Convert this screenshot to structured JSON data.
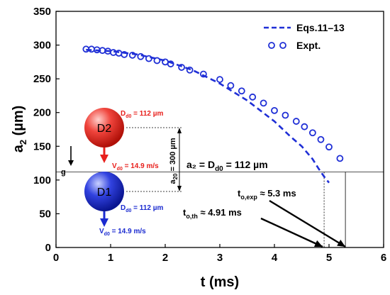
{
  "chart_data": {
    "type": "scatter",
    "xlabel": "t (ms)",
    "ylabel_main": "a",
    "ylabel_sub": "2",
    "ylabel_unit": " (µm)",
    "xlim": [
      0,
      6
    ],
    "ylim": [
      0,
      350
    ],
    "xticks": [
      "0",
      "1",
      "2",
      "3",
      "4",
      "5",
      "6"
    ],
    "yticks": [
      "0",
      "50",
      "100",
      "150",
      "200",
      "250",
      "300",
      "350"
    ],
    "legend": {
      "placement": "top-right",
      "entries": [
        {
          "label": "Eqs.11–13",
          "style": "dashed-line"
        },
        {
          "label": "Expt.",
          "style": "open-circle"
        }
      ]
    },
    "colors": {
      "series": "#1f2fd6",
      "d2": "#e8201c",
      "d1": "#1a2ad0"
    },
    "series": [
      {
        "name": "Eqs.11–13",
        "style": "dashed",
        "x": [
          0.55,
          1.0,
          1.5,
          2.0,
          2.5,
          3.0,
          3.5,
          4.0,
          4.3,
          4.5,
          4.7,
          4.8,
          4.91,
          5.0
        ],
        "y": [
          293,
          291,
          286,
          277,
          263,
          243,
          218,
          187,
          164,
          150,
          131,
          118,
          105,
          96
        ]
      },
      {
        "name": "Expt.",
        "style": "open-circle",
        "x": [
          0.55,
          0.65,
          0.75,
          0.85,
          0.95,
          1.05,
          1.15,
          1.25,
          1.4,
          1.55,
          1.7,
          1.85,
          2.0,
          2.1,
          2.3,
          2.45,
          2.7,
          3.0,
          3.2,
          3.4,
          3.6,
          3.8,
          4.0,
          4.2,
          4.4,
          4.55,
          4.7,
          4.85,
          5.0,
          5.2
        ],
        "y": [
          294,
          294,
          293,
          292,
          291,
          289,
          288,
          286,
          285,
          283,
          280,
          277,
          275,
          272,
          267,
          263,
          257,
          249,
          240,
          232,
          223,
          214,
          203,
          196,
          187,
          179,
          170,
          160,
          149,
          132
        ]
      }
    ],
    "reference_line": {
      "y": 112,
      "label": "a₂ = D₀ = 112 µm"
    },
    "threshold_label": "a₂ = D",
    "threshold_sub": "d0",
    "threshold_value": " = 112 µm",
    "markers": [
      {
        "x": 4.91,
        "label_main": "t",
        "label_sub": "o,th",
        "label_rest": " ≈ 4.91 ms"
      },
      {
        "x": 5.3,
        "label_main": "t",
        "label_sub": "o,exp",
        "label_rest": " ≈ 5.3 ms"
      }
    ],
    "droplets": {
      "d2": {
        "name": "D2",
        "diam_main": "D",
        "diam_sub": "d0",
        "diam_rest": " = 112 µm",
        "vel_main": "V",
        "vel_sub": "d0",
        "vel_rest": " = 14.9 m/s"
      },
      "d1": {
        "name": "D1",
        "diam_main": "D",
        "diam_sub": "d0",
        "diam_rest": " = 112 µm",
        "vel_main": "V",
        "vel_sub": "d0",
        "vel_rest": " = 14.9 m/s"
      },
      "gap_main": "a",
      "gap_sub": "20",
      "gap_rest": " = 300 µm",
      "gravity": "g",
      "gap_um": 300
    }
  }
}
